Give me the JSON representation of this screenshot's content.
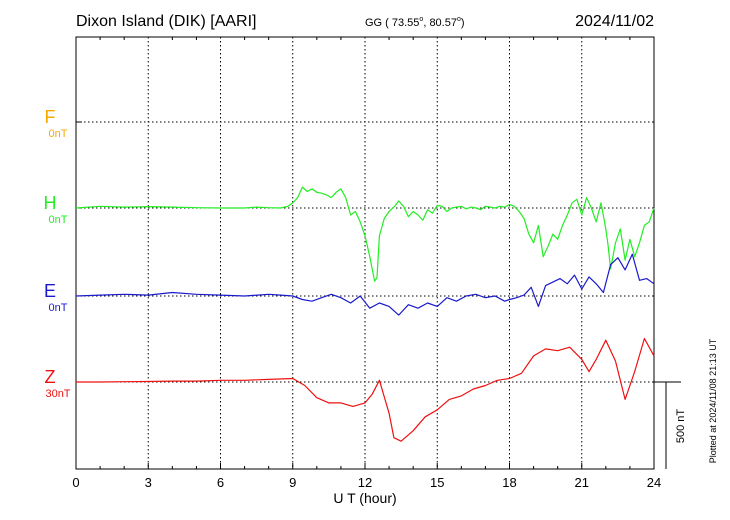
{
  "header": {
    "station": "Dixon Island (DIK)  [AARI]",
    "coords_prefix": "GG ( 73.55",
    "coords_mid": ",  80.57",
    "coords_suffix": ")",
    "degree_mark": "o",
    "date": "2024/11/02"
  },
  "footer": {
    "plotted": "Plotted at 2024/11/08 21:13 UT"
  },
  "chart_data": {
    "type": "line",
    "title": "Dixon Island (DIK)  [AARI]",
    "xlabel": "U T (hour)",
    "xlim": [
      0,
      24
    ],
    "x_ticks": [
      "0",
      "3",
      "6",
      "9",
      "12",
      "15",
      "18",
      "21",
      "24"
    ],
    "grid": true,
    "scale_bar_label": "500 nT",
    "scale_bar_nT": 500,
    "series": [
      {
        "name": "F",
        "offset_label": "0nT",
        "color": "#f5a800",
        "baseline_nT": 0,
        "x": [],
        "y": []
      },
      {
        "name": "H",
        "offset_label": "0nT",
        "color": "#22ee22",
        "baseline_nT": 0,
        "x": [
          0,
          1,
          2,
          3,
          4,
          5,
          6,
          7,
          7.5,
          8,
          8.5,
          8.8,
          9.0,
          9.2,
          9.4,
          9.6,
          9.8,
          10.0,
          10.2,
          10.4,
          10.6,
          10.8,
          11.0,
          11.2,
          11.4,
          11.6,
          11.8,
          12.0,
          12.2,
          12.4,
          12.5,
          12.6,
          12.8,
          13.0,
          13.2,
          13.4,
          13.6,
          13.8,
          14.0,
          14.2,
          14.4,
          14.6,
          14.8,
          15.0,
          15.2,
          15.4,
          15.6,
          15.8,
          16.0,
          16.2,
          16.4,
          16.6,
          16.8,
          17.0,
          17.2,
          17.4,
          17.6,
          17.8,
          18.0,
          18.2,
          18.4,
          18.6,
          18.8,
          19.0,
          19.2,
          19.4,
          19.6,
          19.8,
          20.0,
          20.2,
          20.4,
          20.6,
          20.8,
          21.0,
          21.2,
          21.4,
          21.6,
          21.8,
          22.0,
          22.1,
          22.2,
          22.4,
          22.6,
          22.8,
          23.0,
          23.2,
          23.4,
          23.6,
          23.8,
          24.0
        ],
        "y": [
          0,
          10,
          5,
          8,
          5,
          2,
          0,
          0,
          5,
          2,
          0,
          10,
          30,
          60,
          120,
          95,
          110,
          90,
          85,
          75,
          60,
          90,
          110,
          60,
          -40,
          -20,
          -80,
          -160,
          -280,
          -420,
          -400,
          -160,
          -60,
          -20,
          5,
          40,
          10,
          -50,
          -20,
          -40,
          -70,
          -10,
          -30,
          15,
          10,
          -20,
          0,
          5,
          10,
          -5,
          5,
          0,
          -10,
          10,
          5,
          0,
          10,
          5,
          20,
          10,
          -20,
          -60,
          -150,
          -200,
          -100,
          -280,
          -220,
          -150,
          -180,
          -100,
          -40,
          30,
          50,
          -40,
          60,
          0,
          -80,
          30,
          -120,
          -220,
          -350,
          -200,
          -120,
          -300,
          -180,
          -280,
          -200,
          -100,
          -80,
          0
        ],
        "unit": "nT relative"
      },
      {
        "name": "E",
        "offset_label": "0nT",
        "color": "#1a1acc",
        "baseline_nT": 0,
        "x": [
          0,
          1,
          2,
          3,
          4,
          5,
          6,
          7,
          8,
          8.5,
          9.0,
          9.4,
          9.8,
          10.2,
          10.6,
          11.0,
          11.4,
          11.8,
          12.2,
          12.6,
          13.0,
          13.4,
          13.8,
          14.2,
          14.6,
          15.0,
          15.4,
          15.8,
          16.2,
          16.6,
          17.0,
          17.4,
          17.8,
          18.0,
          18.3,
          18.6,
          18.9,
          19.2,
          19.5,
          19.8,
          20.1,
          20.4,
          20.7,
          21.0,
          21.3,
          21.6,
          21.9,
          22.2,
          22.5,
          22.8,
          23.1,
          23.4,
          23.7,
          24.0
        ],
        "y": [
          0,
          5,
          10,
          5,
          20,
          10,
          5,
          0,
          10,
          5,
          0,
          -20,
          -30,
          -10,
          10,
          -10,
          -40,
          0,
          -70,
          -40,
          -60,
          -110,
          -50,
          -70,
          -40,
          -60,
          -10,
          -30,
          0,
          10,
          -10,
          0,
          -30,
          -20,
          -10,
          5,
          50,
          -60,
          60,
          80,
          100,
          70,
          120,
          40,
          110,
          70,
          20,
          180,
          220,
          150,
          240,
          90,
          100,
          70
        ],
        "unit": "nT relative"
      },
      {
        "name": "Z",
        "offset_label": "30nT",
        "color": "#ee1111",
        "baseline_nT": 0,
        "x": [
          0,
          1,
          2,
          3,
          4,
          5,
          6,
          7,
          8,
          9.0,
          9.5,
          10.0,
          10.5,
          11.0,
          11.5,
          12.0,
          12.3,
          12.6,
          13.0,
          13.2,
          13.5,
          14.0,
          14.5,
          15.0,
          15.5,
          16.0,
          16.5,
          17.0,
          17.5,
          18.0,
          18.5,
          19.0,
          19.5,
          20.0,
          20.5,
          21.0,
          21.3,
          21.6,
          22.0,
          22.4,
          22.8,
          23.2,
          23.6,
          24.0
        ],
        "y": [
          0,
          0,
          2,
          3,
          5,
          5,
          10,
          10,
          15,
          20,
          -20,
          -90,
          -120,
          -120,
          -140,
          -120,
          -70,
          10,
          -180,
          -320,
          -340,
          -280,
          -200,
          -160,
          -100,
          -80,
          -40,
          -20,
          10,
          20,
          50,
          150,
          190,
          180,
          200,
          130,
          60,
          130,
          240,
          120,
          -100,
          60,
          250,
          150
        ],
        "unit": "nT relative"
      }
    ]
  }
}
